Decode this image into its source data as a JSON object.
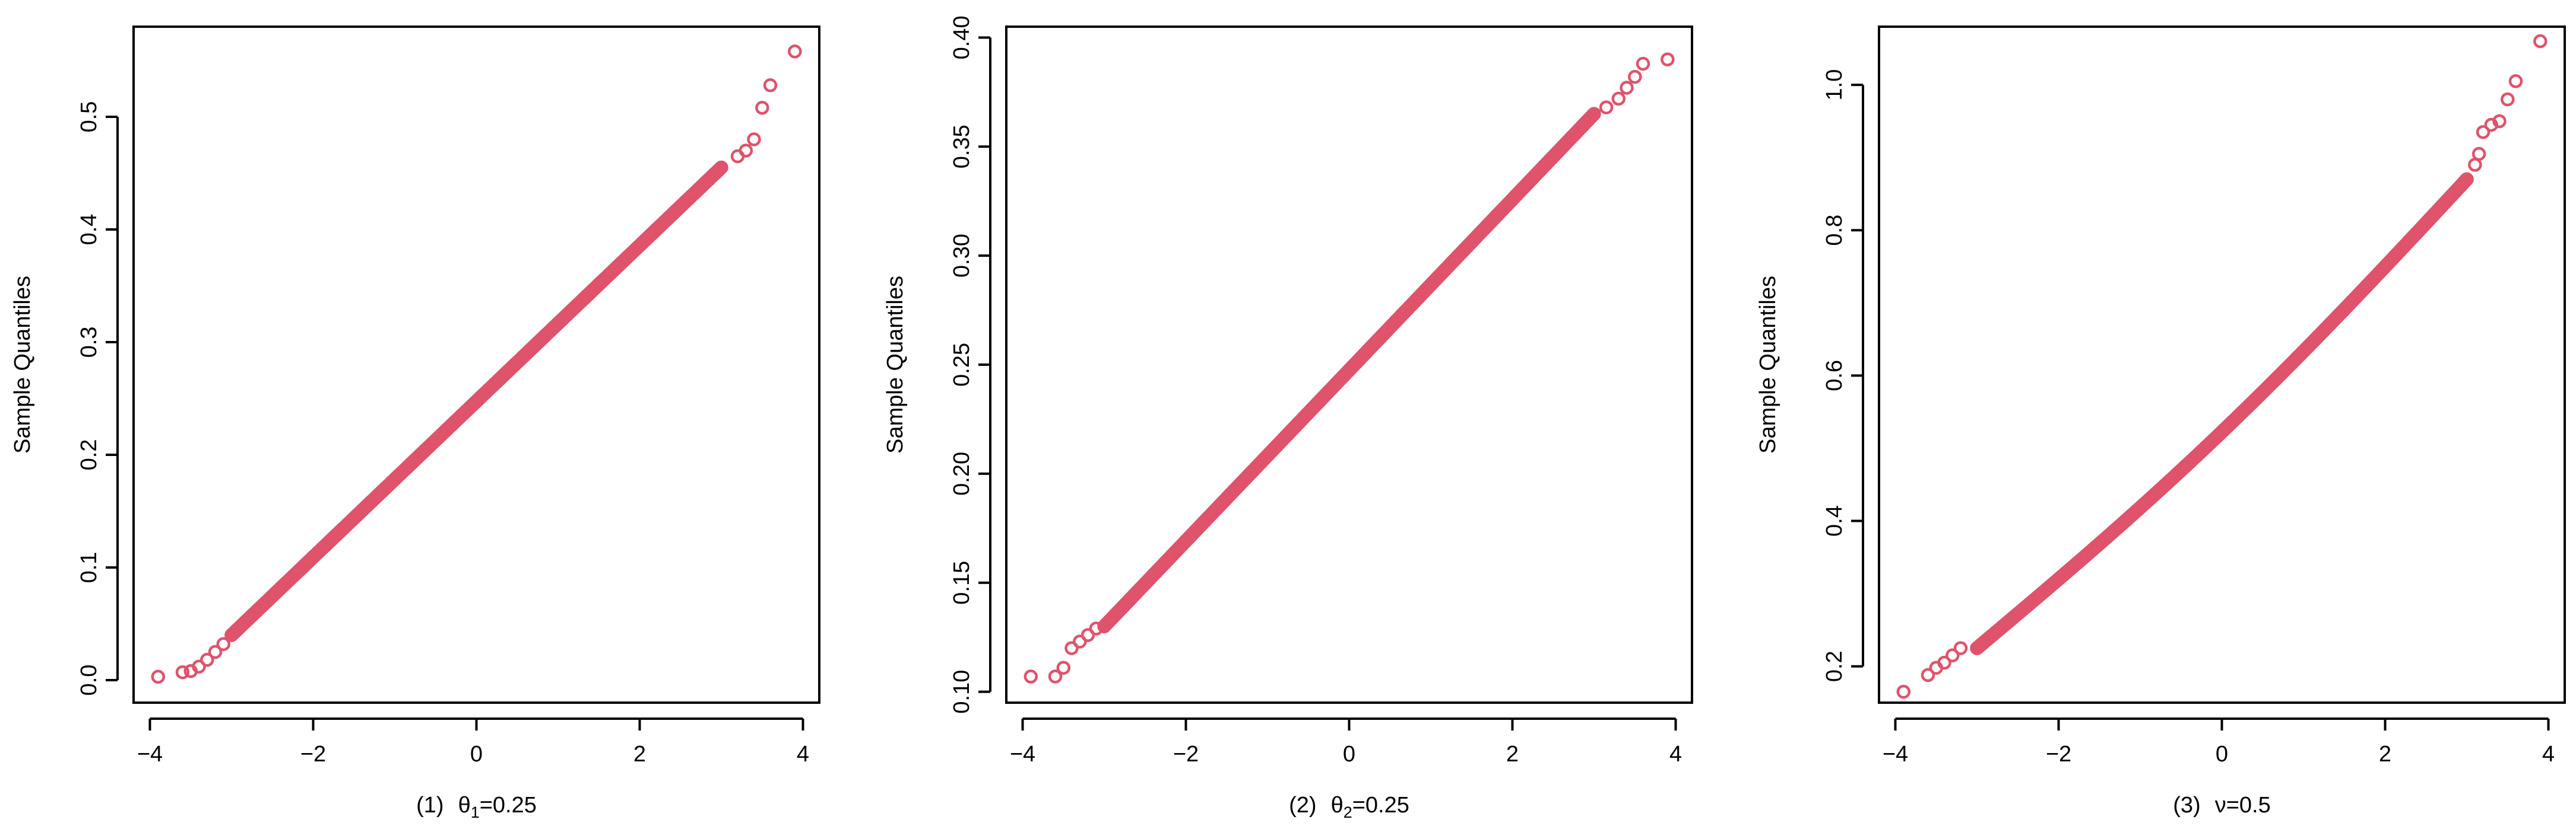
{
  "colors": {
    "points": "#df536b",
    "axes": "#000000"
  },
  "chart_data": [
    {
      "type": "scatter",
      "caption": {
        "prefix": "(1)",
        "symbol": "θ",
        "sub": "1",
        "rest": "=0.25"
      },
      "xlabel": "",
      "ylabel": "Sample Quantiles",
      "xlim": [
        -4.2,
        4.2
      ],
      "ylim": [
        -0.02,
        0.58
      ],
      "xticks": [
        -4,
        -2,
        0,
        2,
        4
      ],
      "xtick_labels": [
        "−4",
        "−2",
        "0",
        "2",
        "4"
      ],
      "yticks": [
        0.0,
        0.1,
        0.2,
        0.3,
        0.4,
        0.5
      ],
      "ytick_labels": [
        "0.0",
        "0.1",
        "0.2",
        "0.3",
        "0.4",
        "0.5"
      ],
      "grid": false,
      "main_line": {
        "from": [
          -3.0,
          0.04
        ],
        "to": [
          3.0,
          0.455
        ],
        "bend": 0.0
      },
      "x": [
        -3.9,
        -3.6,
        -3.5,
        -3.4,
        -3.3,
        -3.2,
        -3.1,
        -3.0,
        3.2,
        3.3,
        3.4,
        3.5,
        3.6,
        3.9
      ],
      "y": [
        0.003,
        0.007,
        0.008,
        0.012,
        0.018,
        0.025,
        0.032,
        0.04,
        0.465,
        0.47,
        0.48,
        0.508,
        0.528,
        0.558
      ]
    },
    {
      "type": "scatter",
      "caption": {
        "prefix": "(2)",
        "symbol": "θ",
        "sub": "2",
        "rest": "=0.25"
      },
      "xlabel": "",
      "ylabel": "Sample Quantiles",
      "xlim": [
        -4.2,
        4.2
      ],
      "ylim": [
        0.095,
        0.405
      ],
      "xticks": [
        -4,
        -2,
        0,
        2,
        4
      ],
      "xtick_labels": [
        "−4",
        "−2",
        "0",
        "2",
        "4"
      ],
      "yticks": [
        0.1,
        0.15,
        0.2,
        0.25,
        0.3,
        0.35,
        0.4
      ],
      "ytick_labels": [
        "0.10",
        "0.15",
        "0.20",
        "0.25",
        "0.30",
        "0.35",
        "0.40"
      ],
      "grid": false,
      "main_line": {
        "from": [
          -3.0,
          0.13
        ],
        "to": [
          3.0,
          0.365
        ],
        "bend": 0.0
      },
      "x": [
        -3.9,
        -3.6,
        -3.5,
        -3.4,
        -3.3,
        -3.2,
        -3.1,
        3.15,
        3.3,
        3.4,
        3.5,
        3.6,
        3.9
      ],
      "y": [
        0.107,
        0.107,
        0.111,
        0.12,
        0.123,
        0.126,
        0.129,
        0.368,
        0.372,
        0.377,
        0.382,
        0.388,
        0.39
      ]
    },
    {
      "type": "scatter",
      "caption": {
        "prefix": "(3)",
        "symbol": "ν",
        "sub": "",
        "rest": "=0.5"
      },
      "xlabel": "",
      "ylabel": "Sample Quantiles",
      "xlim": [
        -4.2,
        4.2
      ],
      "ylim": [
        0.15,
        1.08
      ],
      "xticks": [
        -4,
        -2,
        0,
        2,
        4
      ],
      "xtick_labels": [
        "−4",
        "−2",
        "0",
        "2",
        "4"
      ],
      "yticks": [
        0.2,
        0.4,
        0.6,
        0.8,
        1.0
      ],
      "ytick_labels": [
        "0.2",
        "0.4",
        "0.6",
        "0.8",
        "1.0"
      ],
      "grid": false,
      "main_line": {
        "from": [
          -3.0,
          0.225
        ],
        "to": [
          3.0,
          0.87
        ],
        "bend": 0.025
      },
      "x": [
        -3.9,
        -3.6,
        -3.5,
        -3.4,
        -3.3,
        -3.2,
        3.0,
        3.1,
        3.15,
        3.2,
        3.3,
        3.4,
        3.5,
        3.6,
        3.9
      ],
      "y": [
        0.165,
        0.188,
        0.198,
        0.205,
        0.215,
        0.225,
        0.87,
        0.89,
        0.905,
        0.935,
        0.945,
        0.95,
        0.98,
        1.005,
        1.06
      ]
    }
  ]
}
